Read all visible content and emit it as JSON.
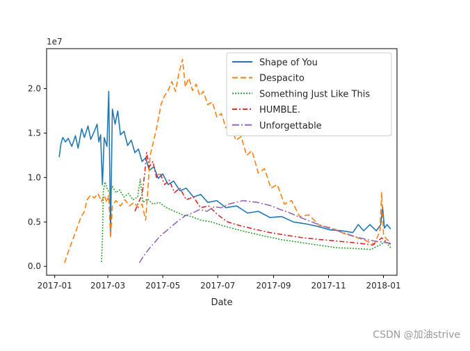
{
  "chart_data": {
    "type": "line",
    "xlabel": "Date",
    "ylabel": "",
    "y_multiplier": "1e7",
    "x_ticks": [
      "2017-01",
      "2017-03",
      "2017-05",
      "2017-07",
      "2017-09",
      "2017-11",
      "2018-01"
    ],
    "y_ticks": [
      "0.0",
      "0.5",
      "1.0",
      "1.5",
      "2.0"
    ],
    "xlim": [
      "2016-12-23",
      "2018-01-16"
    ],
    "ylim": [
      -0.1,
      2.45
    ],
    "grid": false,
    "legend_position": "top-right",
    "series": [
      {
        "name": "Shape of You",
        "color": "#1f77b4",
        "dash": "solid",
        "points": [
          [
            "2017-01-06",
            1.23
          ],
          [
            "2017-01-08",
            1.38
          ],
          [
            "2017-01-10",
            1.45
          ],
          [
            "2017-01-13",
            1.4
          ],
          [
            "2017-01-16",
            1.44
          ],
          [
            "2017-01-20",
            1.35
          ],
          [
            "2017-01-24",
            1.47
          ],
          [
            "2017-01-27",
            1.33
          ],
          [
            "2017-01-31",
            1.55
          ],
          [
            "2017-02-03",
            1.45
          ],
          [
            "2017-02-07",
            1.58
          ],
          [
            "2017-02-10",
            1.43
          ],
          [
            "2017-02-14",
            1.52
          ],
          [
            "2017-02-17",
            1.6
          ],
          [
            "2017-02-19",
            1.4
          ],
          [
            "2017-02-21",
            1.48
          ],
          [
            "2017-02-23",
            0.92
          ],
          [
            "2017-02-25",
            1.45
          ],
          [
            "2017-02-28",
            1.35
          ],
          [
            "2017-03-02",
            1.97
          ],
          [
            "2017-03-04",
            0.38
          ],
          [
            "2017-03-06",
            1.77
          ],
          [
            "2017-03-09",
            1.6
          ],
          [
            "2017-03-12",
            1.75
          ],
          [
            "2017-03-15",
            1.48
          ],
          [
            "2017-03-19",
            1.52
          ],
          [
            "2017-03-23",
            1.36
          ],
          [
            "2017-03-27",
            1.42
          ],
          [
            "2017-03-31",
            1.28
          ],
          [
            "2017-04-04",
            1.32
          ],
          [
            "2017-04-08",
            1.18
          ],
          [
            "2017-04-12",
            1.22
          ],
          [
            "2017-04-16",
            1.08
          ],
          [
            "2017-04-21",
            1.12
          ],
          [
            "2017-04-26",
            0.99
          ],
          [
            "2017-05-01",
            1.04
          ],
          [
            "2017-05-07",
            0.92
          ],
          [
            "2017-05-13",
            0.96
          ],
          [
            "2017-05-20",
            0.85
          ],
          [
            "2017-05-27",
            0.88
          ],
          [
            "2017-06-04",
            0.78
          ],
          [
            "2017-06-12",
            0.81
          ],
          [
            "2017-06-20",
            0.72
          ],
          [
            "2017-06-30",
            0.74
          ],
          [
            "2017-07-10",
            0.66
          ],
          [
            "2017-07-22",
            0.68
          ],
          [
            "2017-08-03",
            0.6
          ],
          [
            "2017-08-15",
            0.62
          ],
          [
            "2017-08-28",
            0.55
          ],
          [
            "2017-09-10",
            0.56
          ],
          [
            "2017-09-23",
            0.5
          ],
          [
            "2017-10-06",
            0.48
          ],
          [
            "2017-10-20",
            0.45
          ],
          [
            "2017-11-03",
            0.41
          ],
          [
            "2017-11-16",
            0.4
          ],
          [
            "2017-11-28",
            0.38
          ],
          [
            "2017-12-04",
            0.47
          ],
          [
            "2017-12-10",
            0.4
          ],
          [
            "2017-12-17",
            0.47
          ],
          [
            "2017-12-24",
            0.4
          ],
          [
            "2017-12-29",
            0.47
          ],
          [
            "2017-12-31",
            0.67
          ],
          [
            "2018-01-02",
            0.43
          ],
          [
            "2018-01-05",
            0.47
          ],
          [
            "2018-01-09",
            0.42
          ]
        ]
      },
      {
        "name": "Despacito",
        "color": "#ff7f0e",
        "dash": "8,4",
        "points": [
          [
            "2017-01-12",
            0.04
          ],
          [
            "2017-01-18",
            0.22
          ],
          [
            "2017-01-24",
            0.38
          ],
          [
            "2017-01-30",
            0.55
          ],
          [
            "2017-02-03",
            0.62
          ],
          [
            "2017-02-06",
            0.75
          ],
          [
            "2017-02-10",
            0.8
          ],
          [
            "2017-02-14",
            0.77
          ],
          [
            "2017-02-18",
            0.82
          ],
          [
            "2017-02-22",
            0.73
          ],
          [
            "2017-02-25",
            0.8
          ],
          [
            "2017-02-28",
            0.72
          ],
          [
            "2017-03-02",
            0.8
          ],
          [
            "2017-03-04",
            0.32
          ],
          [
            "2017-03-06",
            0.68
          ],
          [
            "2017-03-10",
            0.74
          ],
          [
            "2017-03-15",
            0.68
          ],
          [
            "2017-03-20",
            0.75
          ],
          [
            "2017-03-25",
            0.68
          ],
          [
            "2017-03-30",
            0.72
          ],
          [
            "2017-04-04",
            0.66
          ],
          [
            "2017-04-08",
            0.7
          ],
          [
            "2017-04-12",
            0.52
          ],
          [
            "2017-04-14",
            0.8
          ],
          [
            "2017-04-17",
            1.25
          ],
          [
            "2017-04-21",
            1.42
          ],
          [
            "2017-04-25",
            1.6
          ],
          [
            "2017-04-29",
            1.82
          ],
          [
            "2017-05-03",
            1.92
          ],
          [
            "2017-05-07",
            1.98
          ],
          [
            "2017-05-11",
            2.08
          ],
          [
            "2017-05-15",
            1.97
          ],
          [
            "2017-05-19",
            2.18
          ],
          [
            "2017-05-23",
            2.33
          ],
          [
            "2017-05-26",
            2.02
          ],
          [
            "2017-05-30",
            2.12
          ],
          [
            "2017-06-03",
            1.98
          ],
          [
            "2017-06-07",
            2.05
          ],
          [
            "2017-06-11",
            1.92
          ],
          [
            "2017-06-15",
            1.97
          ],
          [
            "2017-06-20",
            1.82
          ],
          [
            "2017-06-25",
            1.85
          ],
          [
            "2017-06-30",
            1.68
          ],
          [
            "2017-07-05",
            1.72
          ],
          [
            "2017-07-10",
            1.56
          ],
          [
            "2017-07-15",
            1.6
          ],
          [
            "2017-07-21",
            1.42
          ],
          [
            "2017-07-27",
            1.46
          ],
          [
            "2017-08-02",
            1.25
          ],
          [
            "2017-08-08",
            1.3
          ],
          [
            "2017-08-15",
            1.05
          ],
          [
            "2017-08-22",
            1.1
          ],
          [
            "2017-08-29",
            0.88
          ],
          [
            "2017-09-05",
            0.92
          ],
          [
            "2017-09-13",
            0.7
          ],
          [
            "2017-09-21",
            0.74
          ],
          [
            "2017-09-30",
            0.56
          ],
          [
            "2017-10-10",
            0.58
          ],
          [
            "2017-10-22",
            0.46
          ],
          [
            "2017-11-05",
            0.43
          ],
          [
            "2017-11-18",
            0.37
          ],
          [
            "2017-12-01",
            0.33
          ],
          [
            "2017-12-12",
            0.29
          ],
          [
            "2017-12-22",
            0.25
          ],
          [
            "2017-12-28",
            0.4
          ],
          [
            "2017-12-30",
            0.83
          ],
          [
            "2018-01-01",
            0.35
          ],
          [
            "2018-01-05",
            0.3
          ],
          [
            "2018-01-09",
            0.28
          ]
        ]
      },
      {
        "name": "Something Just Like This",
        "color": "#2ca02c",
        "dash": "2,2",
        "points": [
          [
            "2017-02-22",
            0.05
          ],
          [
            "2017-02-23",
            0.3
          ],
          [
            "2017-02-24",
            0.85
          ],
          [
            "2017-02-26",
            0.95
          ],
          [
            "2017-02-28",
            0.88
          ],
          [
            "2017-03-03",
            0.82
          ],
          [
            "2017-03-06",
            0.9
          ],
          [
            "2017-03-10",
            0.83
          ],
          [
            "2017-03-14",
            0.86
          ],
          [
            "2017-03-19",
            0.78
          ],
          [
            "2017-03-24",
            0.82
          ],
          [
            "2017-03-29",
            0.75
          ],
          [
            "2017-04-03",
            0.78
          ],
          [
            "2017-04-06",
            0.98
          ],
          [
            "2017-04-09",
            0.72
          ],
          [
            "2017-04-14",
            0.76
          ],
          [
            "2017-04-20",
            0.7
          ],
          [
            "2017-04-27",
            0.72
          ],
          [
            "2017-05-05",
            0.66
          ],
          [
            "2017-05-14",
            0.62
          ],
          [
            "2017-05-23",
            0.58
          ],
          [
            "2017-06-02",
            0.56
          ],
          [
            "2017-06-12",
            0.52
          ],
          [
            "2017-06-24",
            0.5
          ],
          [
            "2017-07-06",
            0.46
          ],
          [
            "2017-07-20",
            0.42
          ],
          [
            "2017-08-05",
            0.38
          ],
          [
            "2017-08-22",
            0.34
          ],
          [
            "2017-09-10",
            0.3
          ],
          [
            "2017-09-30",
            0.27
          ],
          [
            "2017-10-20",
            0.24
          ],
          [
            "2017-11-10",
            0.21
          ],
          [
            "2017-12-01",
            0.2
          ],
          [
            "2017-12-18",
            0.19
          ],
          [
            "2017-12-28",
            0.24
          ],
          [
            "2018-01-03",
            0.28
          ],
          [
            "2018-01-09",
            0.21
          ]
        ]
      },
      {
        "name": "HUMBLE.",
        "color": "#d62728",
        "dash": "7,3,2,3",
        "points": [
          [
            "2017-03-31",
            0.62
          ],
          [
            "2017-04-04",
            0.72
          ],
          [
            "2017-04-08",
            0.8
          ],
          [
            "2017-04-11",
            1.05
          ],
          [
            "2017-04-13",
            1.28
          ],
          [
            "2017-04-16",
            1.12
          ],
          [
            "2017-04-20",
            1.18
          ],
          [
            "2017-04-24",
            1.0
          ],
          [
            "2017-04-28",
            1.05
          ],
          [
            "2017-05-03",
            0.92
          ],
          [
            "2017-05-08",
            0.97
          ],
          [
            "2017-05-14",
            0.83
          ],
          [
            "2017-05-20",
            0.88
          ],
          [
            "2017-05-27",
            0.75
          ],
          [
            "2017-06-04",
            0.78
          ],
          [
            "2017-06-12",
            0.66
          ],
          [
            "2017-06-21",
            0.68
          ],
          [
            "2017-07-01",
            0.58
          ],
          [
            "2017-07-12",
            0.5
          ],
          [
            "2017-07-25",
            0.46
          ],
          [
            "2017-08-10",
            0.42
          ],
          [
            "2017-08-28",
            0.38
          ],
          [
            "2017-09-15",
            0.35
          ],
          [
            "2017-10-05",
            0.32
          ],
          [
            "2017-10-25",
            0.3
          ],
          [
            "2017-11-15",
            0.28
          ],
          [
            "2017-12-05",
            0.26
          ],
          [
            "2017-12-20",
            0.24
          ],
          [
            "2017-12-30",
            0.32
          ],
          [
            "2018-01-05",
            0.27
          ],
          [
            "2018-01-09",
            0.25
          ]
        ]
      },
      {
        "name": "Unforgettable",
        "color": "#9467bd",
        "dash": "10,3,2,3",
        "points": [
          [
            "2017-04-05",
            0.04
          ],
          [
            "2017-04-10",
            0.12
          ],
          [
            "2017-04-16",
            0.2
          ],
          [
            "2017-04-22",
            0.27
          ],
          [
            "2017-04-28",
            0.34
          ],
          [
            "2017-05-05",
            0.4
          ],
          [
            "2017-05-12",
            0.46
          ],
          [
            "2017-05-19",
            0.52
          ],
          [
            "2017-05-26",
            0.57
          ],
          [
            "2017-06-03",
            0.6
          ],
          [
            "2017-06-11",
            0.64
          ],
          [
            "2017-06-19",
            0.62
          ],
          [
            "2017-06-27",
            0.67
          ],
          [
            "2017-07-05",
            0.66
          ],
          [
            "2017-07-13",
            0.7
          ],
          [
            "2017-07-21",
            0.72
          ],
          [
            "2017-07-29",
            0.74
          ],
          [
            "2017-08-06",
            0.73
          ],
          [
            "2017-08-14",
            0.72
          ],
          [
            "2017-08-22",
            0.7
          ],
          [
            "2017-08-30",
            0.68
          ],
          [
            "2017-09-08",
            0.64
          ],
          [
            "2017-09-17",
            0.61
          ],
          [
            "2017-09-26",
            0.57
          ],
          [
            "2017-10-06",
            0.53
          ],
          [
            "2017-10-16",
            0.49
          ],
          [
            "2017-10-27",
            0.45
          ],
          [
            "2017-11-08",
            0.41
          ],
          [
            "2017-11-20",
            0.37
          ],
          [
            "2017-12-02",
            0.33
          ],
          [
            "2017-12-14",
            0.3
          ],
          [
            "2017-12-25",
            0.28
          ],
          [
            "2018-01-02",
            0.27
          ],
          [
            "2018-01-09",
            0.26
          ]
        ]
      }
    ]
  },
  "watermark": "CSDN @加油strive"
}
